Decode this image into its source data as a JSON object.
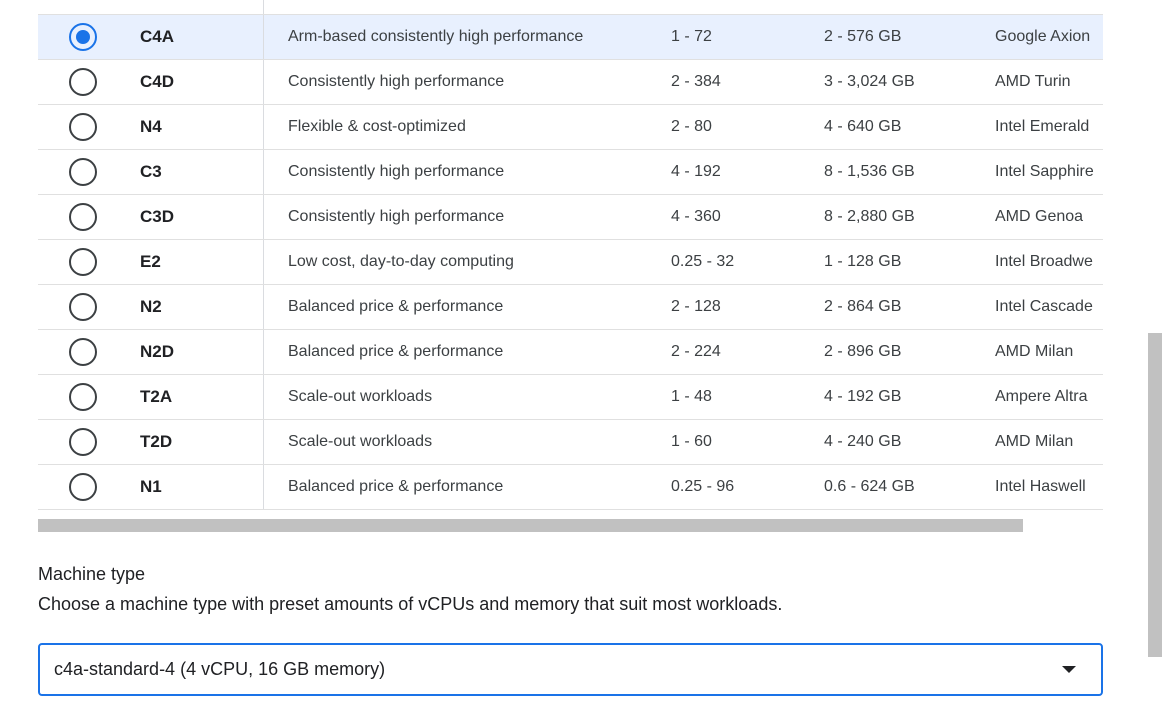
{
  "table": {
    "rows": [
      {
        "selected": true,
        "series": "C4A",
        "description": "Arm-based consistently high performance",
        "vcpus": "1 - 72",
        "memory": "2 - 576 GB",
        "platform": "Google Axion"
      },
      {
        "selected": false,
        "series": "C4D",
        "description": "Consistently high performance",
        "vcpus": "2 - 384",
        "memory": "3 - 3,024 GB",
        "platform": "AMD Turin"
      },
      {
        "selected": false,
        "series": "N4",
        "description": "Flexible & cost-optimized",
        "vcpus": "2 - 80",
        "memory": "4 - 640 GB",
        "platform": "Intel Emerald"
      },
      {
        "selected": false,
        "series": "C3",
        "description": "Consistently high performance",
        "vcpus": "4 - 192",
        "memory": "8 - 1,536 GB",
        "platform": "Intel Sapphire"
      },
      {
        "selected": false,
        "series": "C3D",
        "description": "Consistently high performance",
        "vcpus": "4 - 360",
        "memory": "8 - 2,880 GB",
        "platform": "AMD Genoa"
      },
      {
        "selected": false,
        "series": "E2",
        "description": "Low cost, day-to-day computing",
        "vcpus": "0.25 - 32",
        "memory": "1 - 128 GB",
        "platform": "Intel Broadwe"
      },
      {
        "selected": false,
        "series": "N2",
        "description": "Balanced price & performance",
        "vcpus": "2 - 128",
        "memory": "2 - 864 GB",
        "platform": "Intel Cascade"
      },
      {
        "selected": false,
        "series": "N2D",
        "description": "Balanced price & performance",
        "vcpus": "2 - 224",
        "memory": "2 - 896 GB",
        "platform": "AMD Milan"
      },
      {
        "selected": false,
        "series": "T2A",
        "description": "Scale-out workloads",
        "vcpus": "1 - 48",
        "memory": "4 - 192 GB",
        "platform": "Ampere Altra"
      },
      {
        "selected": false,
        "series": "T2D",
        "description": "Scale-out workloads",
        "vcpus": "1 - 60",
        "memory": "4 - 240 GB",
        "platform": "AMD Milan"
      },
      {
        "selected": false,
        "series": "N1",
        "description": "Balanced price & performance",
        "vcpus": "0.25 - 96",
        "memory": "0.6 - 624 GB",
        "platform": "Intel Haswell"
      }
    ]
  },
  "machine_type": {
    "label": "Machine type",
    "help": "Choose a machine type with preset amounts of vCPUs and memory that suit most workloads.",
    "value": "c4a-standard-4 (4 vCPU, 16 GB memory)"
  }
}
